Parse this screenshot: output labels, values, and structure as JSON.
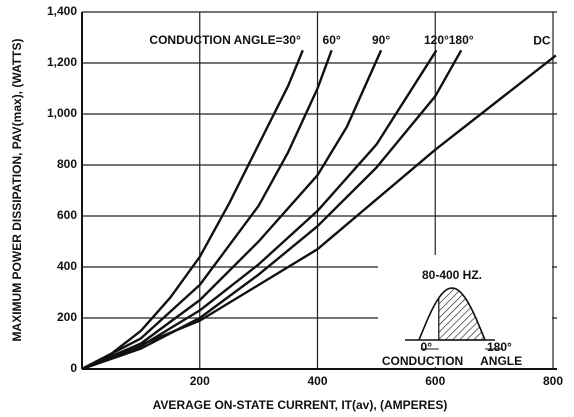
{
  "chart_data": {
    "type": "line",
    "xlabel": "AVERAGE ON-STATE CURRENT, IT(av), (AMPERES)",
    "ylabel": "MAXIMUM POWER DISSIPATION, PAV(max), (WATTS)",
    "xlim": [
      0,
      800
    ],
    "ylim": [
      0,
      1400
    ],
    "xticks": [
      200,
      400,
      600,
      800
    ],
    "yticks": [
      0,
      200,
      400,
      600,
      800,
      {
        "value": 1000,
        "label": "1,000"
      },
      {
        "value": 1200,
        "label": "1,200"
      },
      {
        "value": 1400,
        "label": "1,400"
      }
    ],
    "grid": true,
    "color": "#111111",
    "series": [
      {
        "name": "CONDUCTION ANGLE=30°",
        "x": [
          0,
          50,
          100,
          150,
          200,
          250,
          300,
          350,
          375
        ],
        "values": [
          0,
          60,
          150,
          280,
          440,
          650,
          880,
          1110,
          1250
        ]
      },
      {
        "name": "60°",
        "x": [
          0,
          100,
          200,
          300,
          350,
          400,
          424
        ],
        "values": [
          0,
          120,
          330,
          640,
          850,
          1100,
          1250
        ]
      },
      {
        "name": "90°",
        "x": [
          0,
          100,
          200,
          300,
          400,
          450,
          508
        ],
        "values": [
          0,
          100,
          270,
          500,
          760,
          950,
          1250
        ]
      },
      {
        "name": "120°",
        "x": [
          0,
          100,
          200,
          300,
          400,
          500,
          602
        ],
        "values": [
          0,
          90,
          230,
          410,
          620,
          880,
          1250
        ]
      },
      {
        "name": "180°",
        "x": [
          0,
          100,
          200,
          300,
          400,
          500,
          600,
          644
        ],
        "values": [
          0,
          80,
          200,
          370,
          560,
          790,
          1070,
          1250
        ]
      },
      {
        "name": "DC",
        "x": [
          0,
          200,
          400,
          600,
          805
        ],
        "values": [
          0,
          190,
          470,
          860,
          1230
        ]
      }
    ],
    "inset": {
      "frequency": "80-400 HZ.",
      "start": "0°",
      "end": "180°",
      "caption": "CONDUCTION ANGLE"
    }
  }
}
